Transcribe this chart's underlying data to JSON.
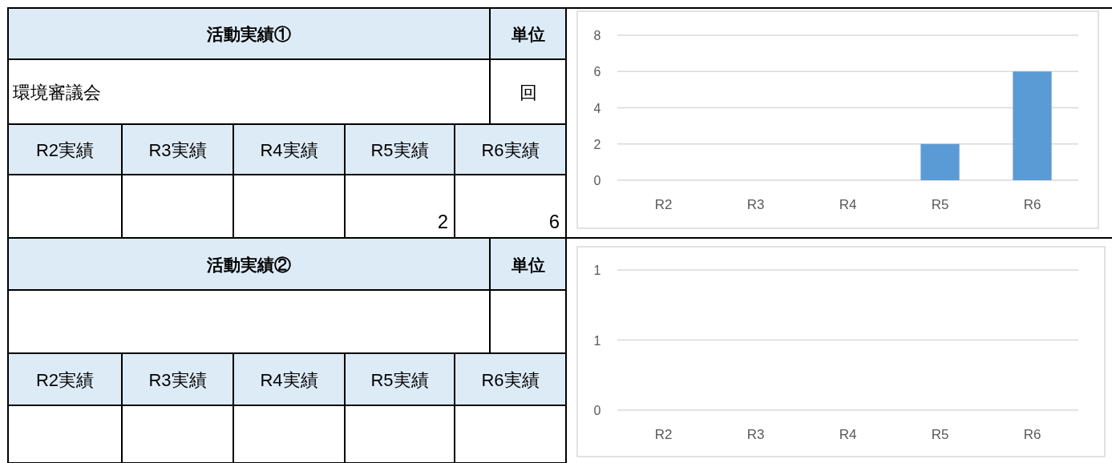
{
  "chart_data": [
    {
      "type": "other",
      "title": "活動実績①",
      "annotations": [
        "単位",
        "環境審議会",
        "回"
      ],
      "categories": [
        "R2実績",
        "R3実績",
        "R4実績",
        "R5実績",
        "R6実績"
      ],
      "values": [
        null,
        null,
        null,
        2,
        6
      ],
      "data_labels": true
    },
    {
      "type": "bar",
      "categories": [
        "R2",
        "R3",
        "R4",
        "R5",
        "R6"
      ],
      "values": [
        null,
        null,
        null,
        2,
        6
      ],
      "color": "#5b9bd5",
      "ylim": [
        0,
        8
      ],
      "yticks": [
        0,
        2,
        4,
        6,
        8
      ],
      "grid": "y"
    },
    {
      "type": "other",
      "title": "活動実績②",
      "annotations": [
        "単位"
      ],
      "categories": [
        "R2実績",
        "R3実績",
        "R4実績",
        "R5実績",
        "R6実績"
      ]
    },
    {
      "type": "bar",
      "categories": [
        "R2",
        "R3",
        "R4",
        "R5",
        "R6"
      ],
      "values": [
        null,
        null,
        null,
        null,
        null
      ],
      "ylim": [
        0,
        1
      ],
      "yticks": [
        0,
        {
          "value": 0.5,
          "label": "1"
        },
        1
      ],
      "grid": "y"
    }
  ]
}
